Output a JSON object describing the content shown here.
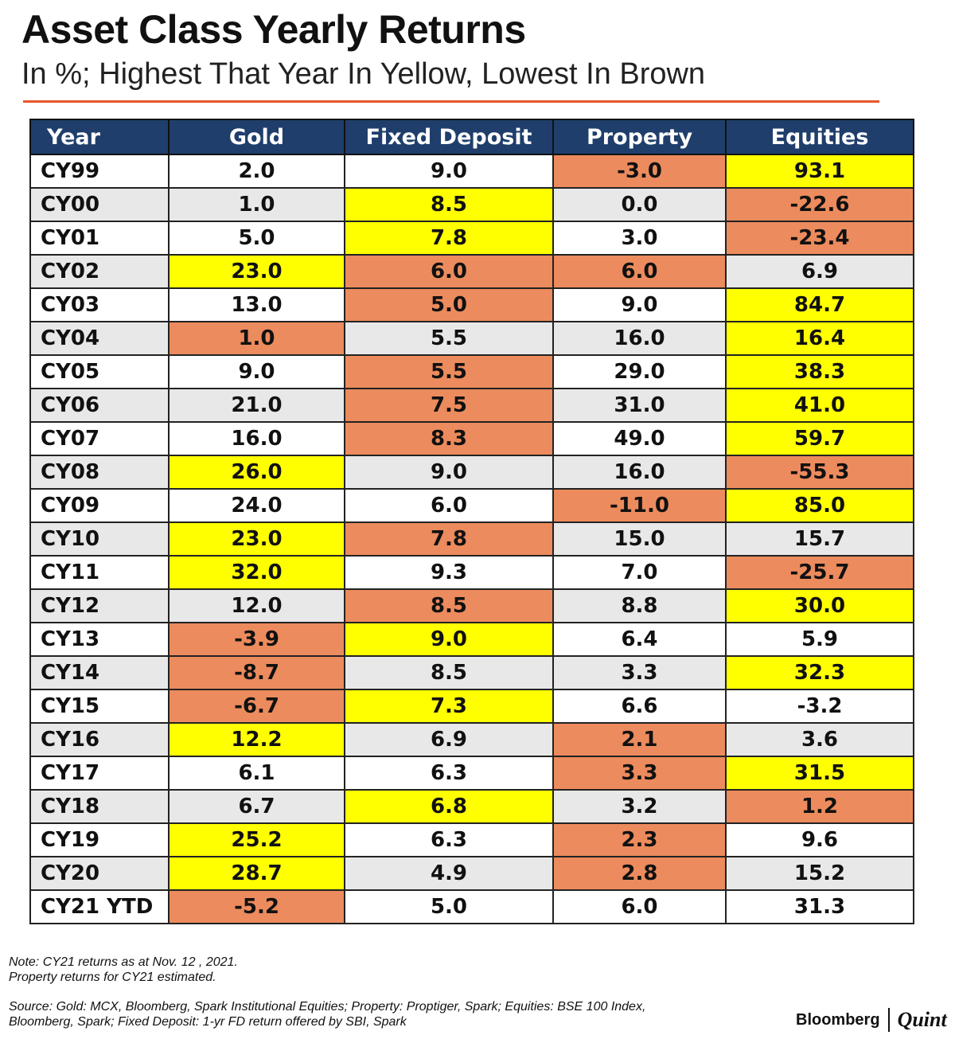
{
  "title": "Asset Class Yearly Returns",
  "subtitle": "In %; Highest That Year In Yellow, Lowest In Brown",
  "colors": {
    "header": "#1f3e6c",
    "highest": "#ffff00",
    "lowest": "#ec8b5d",
    "accent_rule": "#e8572a",
    "alt_row": "#e8e8e8"
  },
  "chart_data": {
    "type": "table",
    "columns": [
      "Year",
      "Gold",
      "Fixed Deposit",
      "Property",
      "Equities"
    ],
    "rows": [
      {
        "year": "CY99",
        "values": [
          "2.0",
          "9.0",
          "-3.0",
          "93.1"
        ],
        "marks": [
          "",
          "",
          "low",
          "high"
        ]
      },
      {
        "year": "CY00",
        "values": [
          "1.0",
          "8.5",
          "0.0",
          "-22.6"
        ],
        "marks": [
          "",
          "high",
          "",
          "low"
        ]
      },
      {
        "year": "CY01",
        "values": [
          "5.0",
          "7.8",
          "3.0",
          "-23.4"
        ],
        "marks": [
          "",
          "high",
          "",
          "low"
        ]
      },
      {
        "year": "CY02",
        "values": [
          "23.0",
          "6.0",
          "6.0",
          "6.9"
        ],
        "marks": [
          "high",
          "low",
          "low",
          ""
        ]
      },
      {
        "year": "CY03",
        "values": [
          "13.0",
          "5.0",
          "9.0",
          "84.7"
        ],
        "marks": [
          "",
          "low",
          "",
          "high"
        ]
      },
      {
        "year": "CY04",
        "values": [
          "1.0",
          "5.5",
          "16.0",
          "16.4"
        ],
        "marks": [
          "low",
          "",
          "",
          "high"
        ]
      },
      {
        "year": "CY05",
        "values": [
          "9.0",
          "5.5",
          "29.0",
          "38.3"
        ],
        "marks": [
          "",
          "low",
          "",
          "high"
        ]
      },
      {
        "year": "CY06",
        "values": [
          "21.0",
          "7.5",
          "31.0",
          "41.0"
        ],
        "marks": [
          "",
          "low",
          "",
          "high"
        ]
      },
      {
        "year": "CY07",
        "values": [
          "16.0",
          "8.3",
          "49.0",
          "59.7"
        ],
        "marks": [
          "",
          "low",
          "",
          "high"
        ]
      },
      {
        "year": "CY08",
        "values": [
          "26.0",
          "9.0",
          "16.0",
          "-55.3"
        ],
        "marks": [
          "high",
          "",
          "",
          "low"
        ]
      },
      {
        "year": "CY09",
        "values": [
          "24.0",
          "6.0",
          "-11.0",
          "85.0"
        ],
        "marks": [
          "",
          "",
          "low",
          "high"
        ]
      },
      {
        "year": "CY10",
        "values": [
          "23.0",
          "7.8",
          "15.0",
          "15.7"
        ],
        "marks": [
          "high",
          "low",
          "",
          ""
        ]
      },
      {
        "year": "CY11",
        "values": [
          "32.0",
          "9.3",
          "7.0",
          "-25.7"
        ],
        "marks": [
          "high",
          "",
          "",
          "low"
        ]
      },
      {
        "year": "CY12",
        "values": [
          "12.0",
          "8.5",
          "8.8",
          "30.0"
        ],
        "marks": [
          "",
          "low",
          "",
          "high"
        ]
      },
      {
        "year": "CY13",
        "values": [
          "-3.9",
          "9.0",
          "6.4",
          "5.9"
        ],
        "marks": [
          "low",
          "high",
          "",
          ""
        ]
      },
      {
        "year": "CY14",
        "values": [
          "-8.7",
          "8.5",
          "3.3",
          "32.3"
        ],
        "marks": [
          "low",
          "",
          "",
          "high"
        ]
      },
      {
        "year": "CY15",
        "values": [
          "-6.7",
          "7.3",
          "6.6",
          "-3.2"
        ],
        "marks": [
          "low",
          "high",
          "",
          ""
        ]
      },
      {
        "year": "CY16",
        "values": [
          "12.2",
          "6.9",
          "2.1",
          "3.6"
        ],
        "marks": [
          "high",
          "",
          "low",
          ""
        ]
      },
      {
        "year": "CY17",
        "values": [
          "6.1",
          "6.3",
          "3.3",
          "31.5"
        ],
        "marks": [
          "",
          "",
          "low",
          "high"
        ]
      },
      {
        "year": "CY18",
        "values": [
          "6.7",
          "6.8",
          "3.2",
          "1.2"
        ],
        "marks": [
          "",
          "high",
          "",
          "low"
        ]
      },
      {
        "year": "CY19",
        "values": [
          "25.2",
          "6.3",
          "2.3",
          "9.6"
        ],
        "marks": [
          "high",
          "",
          "low",
          ""
        ]
      },
      {
        "year": "CY20",
        "values": [
          "28.7",
          "4.9",
          "2.8",
          "15.2"
        ],
        "marks": [
          "high",
          "",
          "low",
          ""
        ]
      },
      {
        "year": "CY21 YTD",
        "values": [
          "-5.2",
          "5.0",
          "6.0",
          "31.3"
        ],
        "marks": [
          "low",
          "",
          "",
          ""
        ]
      }
    ]
  },
  "notes": [
    "Note: CY21 returns as at Nov. 12 , 2021.",
    "Property returns for CY21 estimated."
  ],
  "source": [
    "Source: Gold: MCX, Bloomberg, Spark Institutional Equities; Property: Proptiger, Spark; Equities: BSE 100 Index,",
    "Bloomberg, Spark;  Fixed Deposit: 1-yr FD return offered by SBI, Spark"
  ],
  "logo": {
    "left": "Bloomberg",
    "right": "Quint"
  }
}
